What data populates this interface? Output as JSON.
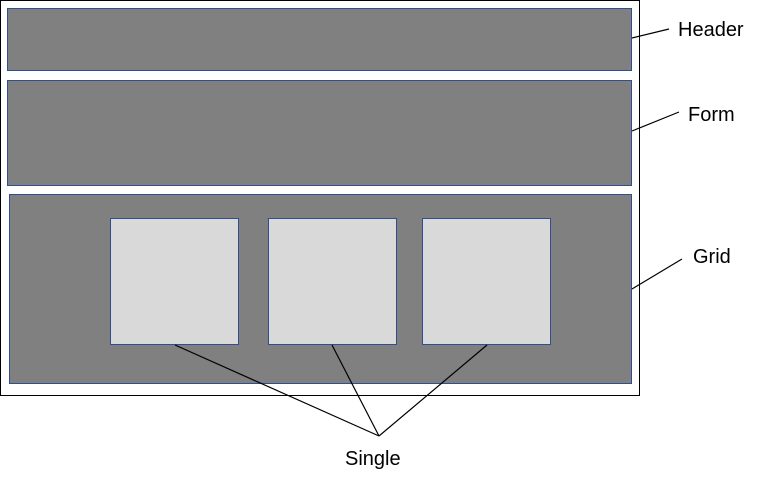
{
  "colors": {
    "region_fill": "#808080",
    "single_fill": "#d9d9d9",
    "outline": "#2f4f8f",
    "text": "#000000"
  },
  "labels": {
    "header": "Header",
    "form": "Form",
    "grid": "Grid",
    "single": "Single"
  }
}
